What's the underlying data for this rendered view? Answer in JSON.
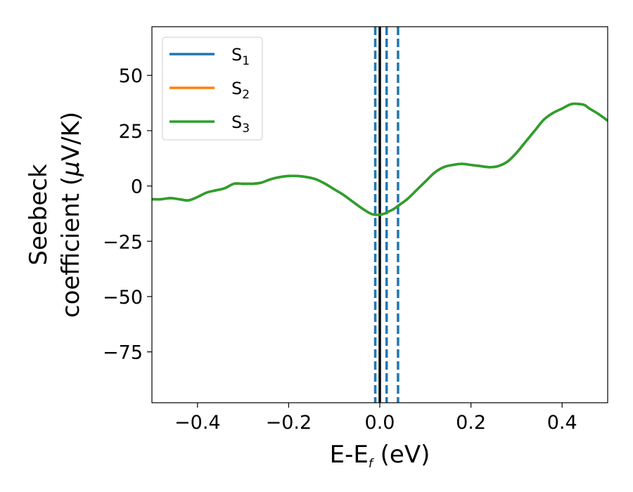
{
  "chart_data": {
    "type": "line",
    "xlabel": {
      "main": "E-E",
      "sub": "f",
      "unit": " (eV)"
    },
    "ylabel": {
      "line1": "Seebeck",
      "line2_prefix": "coefficient  (",
      "line2_mu": "μ",
      "line2_suffix": "V/K)"
    },
    "xlim": [
      -0.5,
      0.5
    ],
    "ylim": [
      -98,
      72
    ],
    "xticks": [
      -0.4,
      -0.2,
      0.0,
      0.2,
      0.4
    ],
    "xtick_labels": [
      "−0.4",
      "−0.2",
      "0.0",
      "0.2",
      "0.4"
    ],
    "yticks": [
      50,
      25,
      0,
      -25,
      -50,
      -75
    ],
    "ytick_labels": [
      "50",
      "25",
      "0",
      "−25",
      "−50",
      "−75"
    ],
    "grid": false,
    "legend_position": "top-left",
    "series": [
      {
        "name": "S",
        "sub": "1",
        "color": "#1f77b4",
        "x": [
          -0.5,
          -0.48,
          -0.46,
          -0.44,
          -0.42,
          -0.4,
          -0.38,
          -0.36,
          -0.34,
          -0.32,
          -0.3,
          -0.28,
          -0.26,
          -0.24,
          -0.22,
          -0.2,
          -0.18,
          -0.16,
          -0.14,
          -0.12,
          -0.1,
          -0.08,
          -0.06,
          -0.04,
          -0.02,
          -0.01,
          0.0,
          0.01,
          0.02,
          0.03,
          0.04,
          0.06,
          0.08,
          0.1,
          0.12,
          0.14,
          0.16,
          0.18,
          0.2,
          0.22,
          0.24,
          0.26,
          0.28,
          0.3,
          0.32,
          0.34,
          0.36,
          0.38,
          0.4,
          0.42,
          0.44,
          0.45,
          0.46,
          0.48,
          0.5
        ],
        "y": [
          -6,
          -6,
          -5.5,
          -6,
          -6.5,
          -5,
          -3,
          -2,
          -1,
          1,
          1,
          1,
          1.5,
          3,
          4,
          4.5,
          4.5,
          4,
          3,
          1,
          -1.5,
          -4,
          -7,
          -10,
          -12.5,
          -13,
          -13,
          -12.5,
          -11.5,
          -10.5,
          -9,
          -6,
          -2,
          2,
          6,
          8.5,
          9.5,
          10,
          9.5,
          9,
          8.5,
          9,
          11,
          15,
          20,
          25,
          30,
          33,
          35,
          37,
          37,
          36.5,
          35,
          32.5,
          29.5
        ]
      },
      {
        "name": "S",
        "sub": "2",
        "color": "#ff7f0e",
        "x": [
          -0.5,
          -0.48,
          -0.46,
          -0.44,
          -0.42,
          -0.4,
          -0.38,
          -0.36,
          -0.34,
          -0.32,
          -0.3,
          -0.28,
          -0.26,
          -0.24,
          -0.22,
          -0.2,
          -0.18,
          -0.16,
          -0.14,
          -0.12,
          -0.1,
          -0.08,
          -0.06,
          -0.04,
          -0.02,
          -0.01,
          0.0,
          0.01,
          0.02,
          0.03,
          0.04,
          0.06,
          0.08,
          0.1,
          0.12,
          0.14,
          0.16,
          0.18,
          0.2,
          0.22,
          0.24,
          0.26,
          0.28,
          0.3,
          0.32,
          0.34,
          0.36,
          0.38,
          0.4,
          0.42,
          0.44,
          0.45,
          0.46,
          0.48,
          0.5
        ],
        "y": [
          -6,
          -6,
          -5.5,
          -6,
          -6.5,
          -5,
          -3,
          -2,
          -1,
          1,
          1,
          1,
          1.5,
          3,
          4,
          4.5,
          4.5,
          4,
          3,
          1,
          -1.5,
          -4,
          -7,
          -10,
          -12.5,
          -13,
          -13,
          -12.5,
          -11.5,
          -10.5,
          -9,
          -6,
          -2,
          2,
          6,
          8.5,
          9.5,
          10,
          9.5,
          9,
          8.5,
          9,
          11,
          15,
          20,
          25,
          30,
          33,
          35,
          37,
          37,
          36.5,
          35,
          32.5,
          29.5
        ]
      },
      {
        "name": "S",
        "sub": "3",
        "color": "#2ca02c",
        "x": [
          -0.5,
          -0.48,
          -0.46,
          -0.44,
          -0.42,
          -0.4,
          -0.38,
          -0.36,
          -0.34,
          -0.32,
          -0.3,
          -0.28,
          -0.26,
          -0.24,
          -0.22,
          -0.2,
          -0.18,
          -0.16,
          -0.14,
          -0.12,
          -0.1,
          -0.08,
          -0.06,
          -0.04,
          -0.02,
          -0.01,
          0.0,
          0.01,
          0.02,
          0.03,
          0.04,
          0.06,
          0.08,
          0.1,
          0.12,
          0.14,
          0.16,
          0.18,
          0.2,
          0.22,
          0.24,
          0.26,
          0.28,
          0.3,
          0.32,
          0.34,
          0.36,
          0.38,
          0.4,
          0.42,
          0.44,
          0.45,
          0.46,
          0.48,
          0.5
        ],
        "y": [
          -6,
          -6,
          -5.5,
          -6,
          -6.5,
          -5,
          -3,
          -2,
          -1,
          1,
          1,
          1,
          1.5,
          3,
          4,
          4.5,
          4.5,
          4,
          3,
          1,
          -1.5,
          -4,
          -7,
          -10,
          -12.5,
          -13,
          -13,
          -12.5,
          -11.5,
          -10.5,
          -9,
          -6,
          -2,
          2,
          6,
          8.5,
          9.5,
          10,
          9.5,
          9,
          8.5,
          9,
          11,
          15,
          20,
          25,
          30,
          33,
          35,
          37,
          37,
          36.5,
          35,
          32.5,
          29.5
        ]
      }
    ],
    "vlines": [
      {
        "x": -0.01,
        "style": "dashed",
        "color": "#1f77b4"
      },
      {
        "x": 0.015,
        "style": "dashed",
        "color": "#1f77b4"
      },
      {
        "x": 0.04,
        "style": "dashed",
        "color": "#1f77b4"
      },
      {
        "x": 0.0,
        "style": "solid",
        "color": "#000000"
      }
    ]
  }
}
